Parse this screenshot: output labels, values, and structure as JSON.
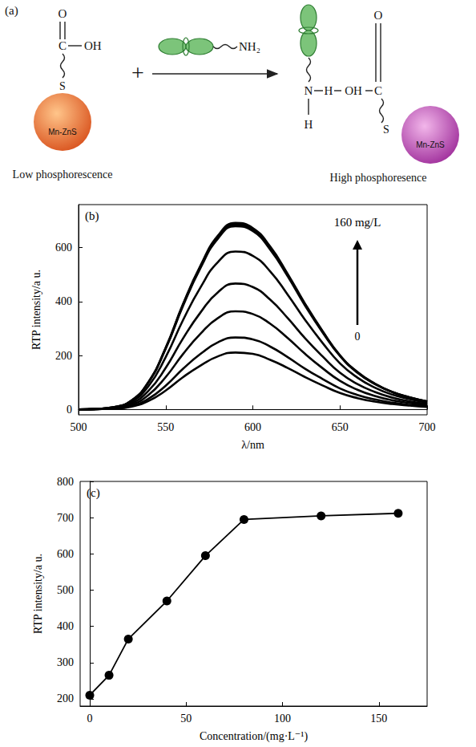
{
  "diagram": {
    "label": "(a)",
    "reactant": {
      "carbonyl_o": "O",
      "carbon": "C",
      "hydroxyl": "OH",
      "sulfur": "S",
      "particle": "Mn-ZnS",
      "caption": "Low phosphorescence"
    },
    "plus": "+",
    "amine": "NH₂",
    "product": {
      "nitrogen": "N",
      "hydrogen": "H",
      "bridge_h": "H",
      "bridge_oh": "OH",
      "carbon": "C",
      "carbonyl_o": "O",
      "sulfur": "S",
      "particle": "Mn-ZnS",
      "caption": "High phosphoresence"
    }
  },
  "chart_data": [
    {
      "type": "line",
      "title": "(b)",
      "x_label": "λ/nm",
      "y_label": "RTP intensity/a u.",
      "x": [
        500,
        510,
        520,
        530,
        540,
        550,
        560,
        570,
        580,
        590,
        600,
        610,
        620,
        630,
        640,
        650,
        660,
        670,
        680,
        690,
        700
      ],
      "series": [
        {
          "values": [
            0,
            1,
            3,
            10,
            31,
            70,
            120,
            163,
            197,
            211,
            206,
            184,
            154,
            120,
            89,
            61,
            42,
            29,
            20,
            14,
            9
          ]
        },
        {
          "values": [
            0,
            1,
            3,
            12,
            39,
            88,
            151,
            206,
            249,
            267,
            260,
            233,
            194,
            151,
            113,
            78,
            54,
            37,
            25,
            17,
            12
          ]
        },
        {
          "values": [
            0,
            1,
            4,
            16,
            53,
            120,
            206,
            281,
            339,
            364,
            354,
            318,
            265,
            206,
            153,
            106,
            73,
            50,
            34,
            24,
            16
          ]
        },
        {
          "values": [
            0,
            1,
            6,
            21,
            68,
            154,
            264,
            360,
            435,
            467,
            454,
            407,
            339,
            264,
            197,
            136,
            94,
            65,
            44,
            30,
            20
          ]
        },
        {
          "values": [
            0,
            2,
            7,
            26,
            85,
            194,
            332,
            453,
            547,
            586,
            570,
            512,
            426,
            332,
            247,
            171,
            118,
            81,
            55,
            38,
            25
          ]
        },
        {
          "values": [
            0,
            2,
            8,
            31,
            99,
            225,
            385,
            525,
            634,
            680,
            662,
            593,
            494,
            385,
            286,
            198,
            136,
            94,
            64,
            44,
            29
          ]
        },
        {
          "values": [
            0,
            2,
            8,
            31,
            100,
            227,
            389,
            530,
            640,
            686,
            667,
            599,
            499,
            389,
            289,
            200,
            138,
            95,
            65,
            45,
            30
          ]
        },
        {
          "values": [
            0,
            2,
            8,
            31,
            101,
            229,
            392,
            534,
            645,
            692,
            673,
            604,
            503,
            392,
            291,
            201,
            139,
            96,
            65,
            45,
            30
          ]
        }
      ],
      "annotations": [
        "160 mg/L",
        "0"
      ],
      "color": "#000000",
      "marker": "none",
      "line_style": "solid",
      "xlim": [
        500,
        700
      ],
      "xticks": [
        500,
        550,
        600,
        650,
        700
      ],
      "ylim": [
        -20,
        760
      ],
      "yticks": [
        0,
        200,
        400,
        600
      ],
      "grid": false
    },
    {
      "type": "line",
      "title": "(c)",
      "x_label": "Concentration/(mg·L⁻¹)",
      "y_label": "RTP intensity/a u.",
      "x": [
        0,
        10,
        20,
        40,
        60,
        80,
        120,
        160
      ],
      "values": [
        210,
        265,
        365,
        470,
        595,
        695,
        705,
        712
      ],
      "color": "#000000",
      "marker": "circle",
      "line_style": "solid",
      "xlim": [
        -5,
        175
      ],
      "xticks": [
        0,
        50,
        100,
        150
      ],
      "ylim": [
        180,
        800
      ],
      "yticks": [
        200,
        300,
        400,
        500,
        600,
        700,
        800
      ],
      "grid": false
    }
  ]
}
